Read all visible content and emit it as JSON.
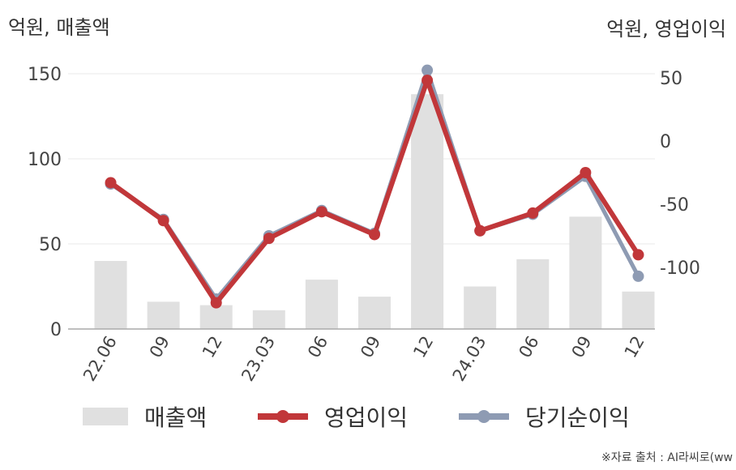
{
  "units": {
    "left": "억원, 매출액",
    "right": "억원, 영업이익"
  },
  "source": "※자료 출처 : AI라씨로(ww",
  "colors": {
    "revenue": "#e0e0e0",
    "operating": "#c1373a",
    "net": "#8e9bb3",
    "axis": "#aaaaaa",
    "grid": "#e8e8e8"
  },
  "legend": {
    "revenue": "매출액",
    "operating": "영업이익",
    "net": "당기순이익"
  },
  "chart_data": {
    "type": "bar",
    "categories": [
      "22.06",
      "09",
      "12",
      "23.03",
      "06",
      "09",
      "12",
      "24.03",
      "06",
      "09",
      "12"
    ],
    "left_axis": {
      "ylim": [
        0,
        160
      ],
      "ticks": [
        0,
        50,
        100,
        150
      ]
    },
    "right_axis": {
      "ylim": [
        -150,
        60
      ],
      "ticks": [
        50,
        0,
        -50,
        -100
      ]
    },
    "series": [
      {
        "name": "매출액",
        "type": "bar",
        "axis": "left",
        "values": [
          40,
          16,
          14,
          11,
          29,
          19,
          138,
          25,
          41,
          66,
          22
        ]
      },
      {
        "name": "당기순이익",
        "type": "line",
        "axis": "right",
        "values": [
          -34,
          -62,
          -125,
          -75,
          -55,
          -73,
          56,
          -71,
          -58,
          -28,
          -107
        ]
      },
      {
        "name": "영업이익",
        "type": "line",
        "axis": "right",
        "values": [
          -33,
          -63,
          -128,
          -77,
          -56,
          -74,
          48,
          -71,
          -57,
          -25,
          -90
        ]
      }
    ],
    "grid": true,
    "legend_position": "bottom"
  }
}
